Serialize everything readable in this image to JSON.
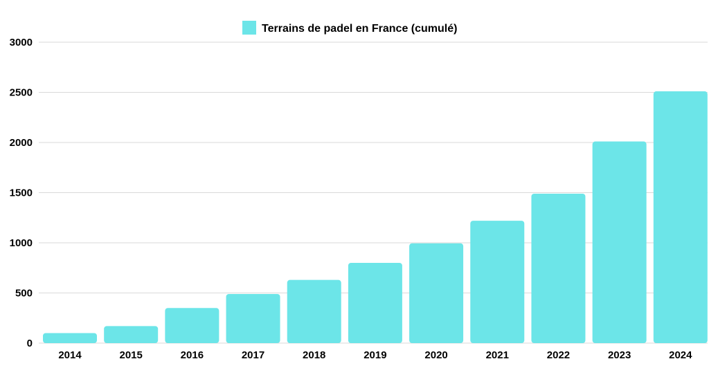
{
  "chart_data": {
    "type": "bar",
    "legend_position": "top-center",
    "grid": true,
    "ylim": [
      0,
      3000
    ],
    "y_ticks": [
      0,
      500,
      1000,
      1500,
      2000,
      2500,
      3000
    ],
    "categories": [
      "2014",
      "2015",
      "2016",
      "2017",
      "2018",
      "2019",
      "2020",
      "2021",
      "2022",
      "2023",
      "2024"
    ],
    "series": [
      {
        "name": "Terrains de padel en France (cumulé)",
        "color": "#6ce5e8",
        "values": [
          100,
          170,
          350,
          490,
          630,
          800,
          995,
          1220,
          1490,
          2010,
          2510
        ]
      }
    ]
  }
}
